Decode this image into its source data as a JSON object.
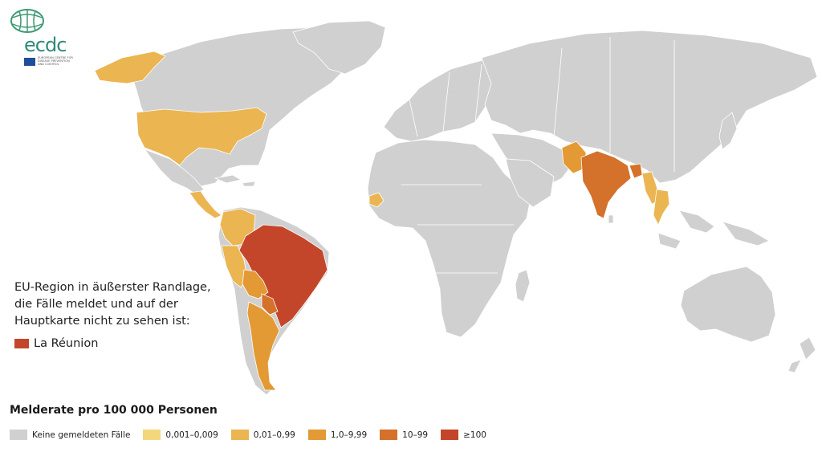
{
  "logo": {
    "wordmark": "ecdc",
    "subtitle_lines": [
      "EUROPEAN CENTRE FOR",
      "DISEASE PREVENTION",
      "AND CONTROL"
    ]
  },
  "inset_note": {
    "lines": [
      "EU-Region in äußerster Randlage,",
      "die Fälle meldet und auf der",
      "Hauptkarte nicht zu sehen ist:"
    ],
    "region_label": "La Réunion",
    "region_color": "#c4462a"
  },
  "legend": {
    "title": "Melderate pro 100 000 Personen",
    "items": [
      {
        "label": "Keine gemeldeten  Fälle",
        "color": "#d0d0d0"
      },
      {
        "label": "0,001–0,009",
        "color": "#f2d77c"
      },
      {
        "label": "0,01–0,99",
        "color": "#ebb552"
      },
      {
        "label": "1,0–9,99",
        "color": "#e39a34"
      },
      {
        "label": "10–99",
        "color": "#d4712a"
      },
      {
        "label": "≥100",
        "color": "#c4462a"
      }
    ]
  },
  "map_data": {
    "reported_regions": [
      {
        "region": "Alaska",
        "class": "0,01–0,99"
      },
      {
        "region": "United States",
        "class": "0,01–0,99"
      },
      {
        "region": "Central America",
        "class": "0,01–0,99"
      },
      {
        "region": "Northern South America",
        "class": "0,01–0,99"
      },
      {
        "region": "Peru",
        "class": "0,01–0,99"
      },
      {
        "region": "Bolivia",
        "class": "1,0–9,99"
      },
      {
        "region": "Paraguay",
        "class": "10–99"
      },
      {
        "region": "Argentina",
        "class": "1,0–9,99"
      },
      {
        "region": "Brazil",
        "class": "≥100"
      },
      {
        "region": "Senegal",
        "class": "0,01–0,99"
      },
      {
        "region": "Pakistan",
        "class": "1,0–9,99"
      },
      {
        "region": "India",
        "class": "10–99"
      },
      {
        "region": "Bangladesh",
        "class": "10–99"
      },
      {
        "region": "Myanmar",
        "class": "0,01–0,99"
      },
      {
        "region": "Thailand",
        "class": "0,01–0,99"
      }
    ]
  }
}
